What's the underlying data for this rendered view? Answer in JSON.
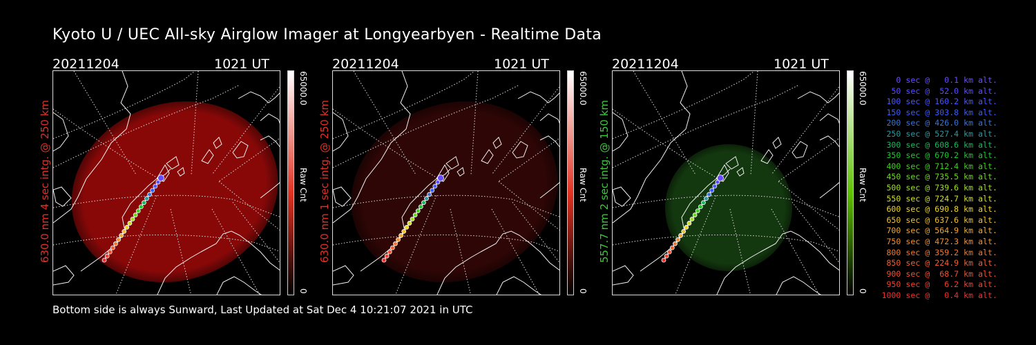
{
  "title": "Kyoto U / UEC All-sky Airglow Imager at Longyearbyen - Realtime Data",
  "footer": "Bottom side is always Sunward, Last Updated at Sat Dec  4 10:21:07 2021 in UTC",
  "panels": [
    {
      "date": "20211204",
      "time": "1021 UT",
      "label": "630.0 nm 4 sec intg. @ 250 km",
      "label_color": "#e0302a",
      "glow_color": "#a00a0a",
      "glow_opacity": 0.85,
      "cbar_color": "#e03020",
      "cbar_max": "65000.0",
      "cbar_unit": "Raw Cnt",
      "cbar_min": "0"
    },
    {
      "date": "20211204",
      "time": "1021 UT",
      "label": "630.0 nm 1 sec intg. @ 250 km",
      "label_color": "#e0302a",
      "glow_color": "#3a0707",
      "glow_opacity": 0.8,
      "cbar_color": "#e03020",
      "cbar_max": "65000.0",
      "cbar_unit": "Raw Cnt",
      "cbar_min": "0"
    },
    {
      "date": "20211204",
      "time": "1021 UT",
      "label": "557.7 nm 2 sec intg. @ 150 km",
      "label_color": "#3cc83c",
      "glow_color": "#153d10",
      "glow_opacity": 0.9,
      "cbar_color": "#5cc000",
      "cbar_max": "65000.0",
      "cbar_unit": "Raw Cnt",
      "cbar_min": "0"
    }
  ],
  "legend": [
    {
      "text": "0 sec @   0.1 km alt.",
      "color": "#6a4cff"
    },
    {
      "text": "50 sec @  52.0 km alt.",
      "color": "#5a4cff"
    },
    {
      "text": "100 sec @ 160.2 km alt.",
      "color": "#4a55ff"
    },
    {
      "text": "150 sec @ 303.8 km alt.",
      "color": "#3a5cff"
    },
    {
      "text": "200 sec @ 426.0 km alt.",
      "color": "#3a74d8"
    },
    {
      "text": "250 sec @ 527.4 km alt.",
      "color": "#2a9aa0"
    },
    {
      "text": "300 sec @ 608.6 km alt.",
      "color": "#1ab860"
    },
    {
      "text": "350 sec @ 670.2 km alt.",
      "color": "#20c830"
    },
    {
      "text": "400 sec @ 712.4 km alt.",
      "color": "#40d020"
    },
    {
      "text": "450 sec @ 735.5 km alt.",
      "color": "#70d820"
    },
    {
      "text": "500 sec @ 739.6 km alt.",
      "color": "#a0e020"
    },
    {
      "text": "550 sec @ 724.7 km alt.",
      "color": "#d0e020"
    },
    {
      "text": "600 sec @ 690.8 km alt.",
      "color": "#f0d820"
    },
    {
      "text": "650 sec @ 637.6 km alt.",
      "color": "#f0c030"
    },
    {
      "text": "700 sec @ 564.9 km alt.",
      "color": "#f0a830"
    },
    {
      "text": "750 sec @ 472.3 km alt.",
      "color": "#f09030"
    },
    {
      "text": "800 sec @ 359.2 km alt.",
      "color": "#f07830"
    },
    {
      "text": "850 sec @ 224.9 km alt.",
      "color": "#f06030"
    },
    {
      "text": "900 sec @  68.7 km alt.",
      "color": "#f05030"
    },
    {
      "text": "950 sec @   6.2 km alt.",
      "color": "#f04030"
    },
    {
      "text": "1000 sec @   0.4 km alt.",
      "color": "#f03030"
    }
  ]
}
